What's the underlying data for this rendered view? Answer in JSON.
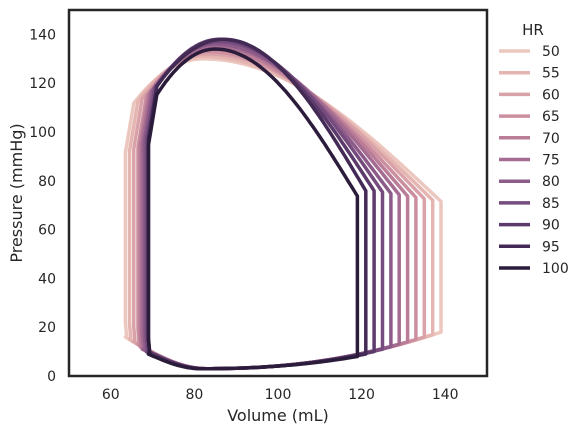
{
  "chart_data": {
    "type": "line",
    "title": "",
    "xlabel": "Volume (mL)",
    "ylabel": "Pressure (mmHg)",
    "xlim": [
      50,
      150
    ],
    "ylim": [
      0,
      150
    ],
    "xticks": [
      60,
      80,
      100,
      120,
      140
    ],
    "yticks": [
      0,
      20,
      40,
      60,
      80,
      100,
      120,
      140
    ],
    "grid": false,
    "legend": {
      "title": "HR",
      "placement": "outside-right"
    },
    "series": [
      {
        "name": "50",
        "color": "#ecc7bf",
        "edv": 139,
        "esv": 63.5,
        "peak": 130,
        "peak_v": 82,
        "ed_p": 18,
        "es_p": 16
      },
      {
        "name": "55",
        "color": "#e5b5b1",
        "edv": 137,
        "esv": 64.5,
        "peak": 131,
        "peak_v": 82,
        "ed_p": 17,
        "es_p": 15
      },
      {
        "name": "60",
        "color": "#d9a2a8",
        "edv": 135,
        "esv": 65.5,
        "peak": 132,
        "peak_v": 83,
        "ed_p": 16,
        "es_p": 14
      },
      {
        "name": "65",
        "color": "#cb8fa0",
        "edv": 133,
        "esv": 66.5,
        "peak": 133,
        "peak_v": 83,
        "ed_p": 15,
        "es_p": 13
      },
      {
        "name": "70",
        "color": "#ba7d98",
        "edv": 131,
        "esv": 67.0,
        "peak": 134,
        "peak_v": 84,
        "ed_p": 14,
        "es_p": 12
      },
      {
        "name": "75",
        "color": "#a56c91",
        "edv": 129,
        "esv": 67.5,
        "peak": 135,
        "peak_v": 85,
        "ed_p": 13,
        "es_p": 11
      },
      {
        "name": "80",
        "color": "#8d5b89",
        "edv": 127,
        "esv": 68.0,
        "peak": 136,
        "peak_v": 85,
        "ed_p": 12,
        "es_p": 11
      },
      {
        "name": "85",
        "color": "#764c7e",
        "edv": 125,
        "esv": 68.5,
        "peak": 137,
        "peak_v": 86,
        "ed_p": 11,
        "es_p": 10
      },
      {
        "name": "90",
        "color": "#5c3a6b",
        "edv": 123,
        "esv": 69.0,
        "peak": 138,
        "peak_v": 86,
        "ed_p": 10,
        "es_p": 10
      },
      {
        "name": "95",
        "color": "#432a55",
        "edv": 121,
        "esv": 69.0,
        "peak": 138,
        "peak_v": 87,
        "ed_p": 9,
        "es_p": 9
      },
      {
        "name": "100",
        "color": "#2b1c3b",
        "edv": 119,
        "esv": 69.0,
        "peak": 134,
        "peak_v": 85,
        "ed_p": 8,
        "es_p": 9
      }
    ]
  }
}
